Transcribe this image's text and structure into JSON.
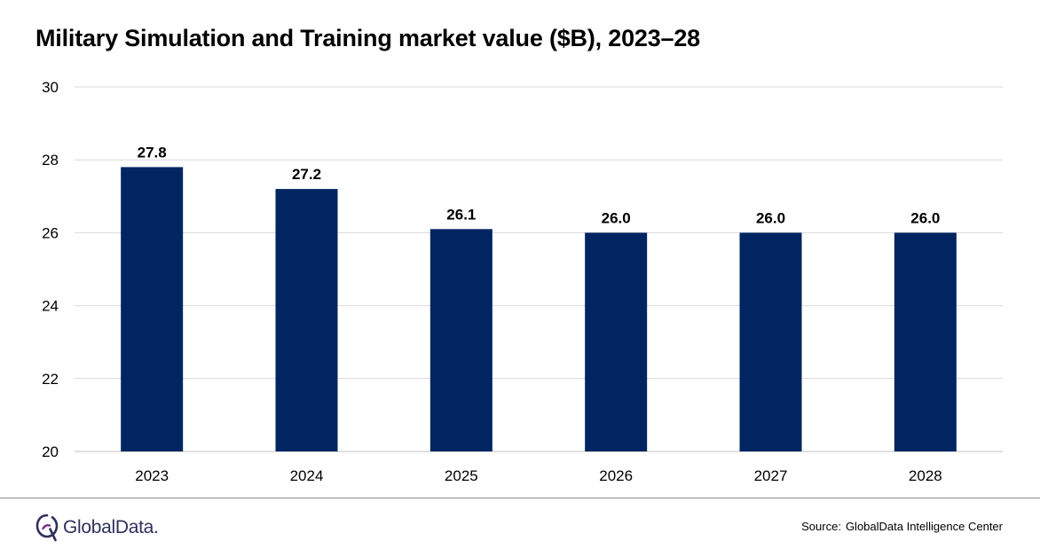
{
  "title": "Military Simulation and Training market value ($B), 2023–28",
  "colors": {
    "bar": "#002561",
    "grid": "#d9d9d9",
    "axis": "#bfbfbf",
    "text": "#000000",
    "logo": "#2f2f5e"
  },
  "chart_data": {
    "type": "bar",
    "title": "Military Simulation and Training market value ($B), 2023–28",
    "categories": [
      "2023",
      "2024",
      "2025",
      "2026",
      "2027",
      "2028"
    ],
    "values": [
      27.8,
      27.2,
      26.1,
      26.0,
      26.0,
      26.0
    ],
    "value_labels": [
      "27.8",
      "27.2",
      "26.1",
      "26.0",
      "26.0",
      "26.0"
    ],
    "xlabel": "",
    "ylabel": "",
    "ylim": [
      20,
      30
    ],
    "yticks": [
      20,
      22,
      24,
      26,
      28,
      30
    ],
    "grid": true,
    "legend": "none"
  },
  "footer": {
    "logo_text": "GlobalData.",
    "logo_icon": "globaldata-logo-icon",
    "source_label": "Source:",
    "source_text": "GlobalData Intelligence Center"
  }
}
